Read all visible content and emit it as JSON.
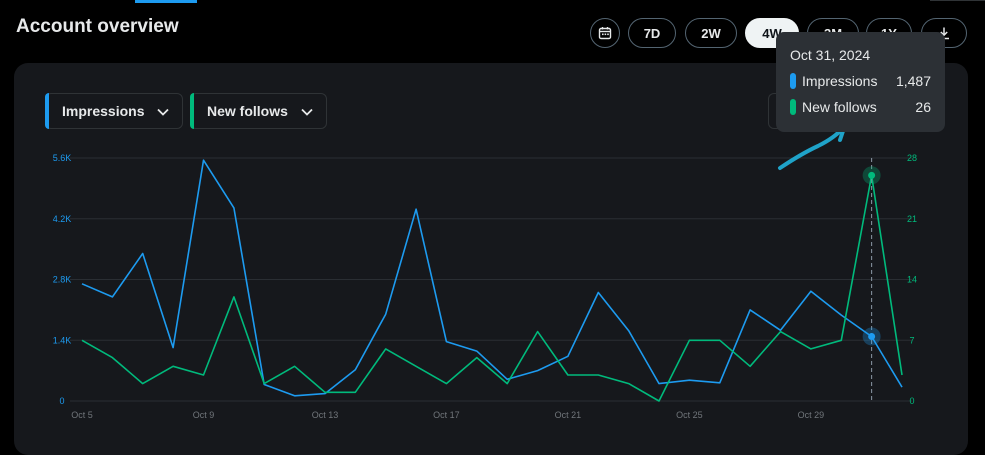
{
  "header": {
    "title": "Account overview",
    "ranges": [
      "7D",
      "2W",
      "4W",
      "3M",
      "1Y"
    ],
    "active_range": "4W"
  },
  "icons": {
    "calendar": "calendar-icon",
    "download": "download-icon",
    "chevron": "chevron-down-icon"
  },
  "selectors": [
    {
      "label": "Impressions",
      "color": "#1d9bf0"
    },
    {
      "label": "New follows",
      "color": "#00ba7c"
    }
  ],
  "tooltip": {
    "date": "Oct 31, 2024",
    "rows": [
      {
        "label": "Impressions",
        "value": "1,487",
        "color": "#1d9bf0"
      },
      {
        "label": "New follows",
        "value": "26",
        "color": "#00ba7c"
      }
    ]
  },
  "chart_data": {
    "type": "line",
    "x": [
      "Oct 5",
      "Oct 6",
      "Oct 7",
      "Oct 8",
      "Oct 9",
      "Oct 10",
      "Oct 11",
      "Oct 12",
      "Oct 13",
      "Oct 14",
      "Oct 15",
      "Oct 16",
      "Oct 17",
      "Oct 18",
      "Oct 19",
      "Oct 20",
      "Oct 21",
      "Oct 22",
      "Oct 23",
      "Oct 24",
      "Oct 25",
      "Oct 26",
      "Oct 27",
      "Oct 28",
      "Oct 29",
      "Oct 30",
      "Oct 31",
      "Nov 1"
    ],
    "x_tick_labels": [
      "Oct 5",
      "Oct 9",
      "Oct 13",
      "Oct 17",
      "Oct 21",
      "Oct 25",
      "Oct 29"
    ],
    "y_left_ticks": [
      "0",
      "1.4K",
      "2.8K",
      "4.2K",
      "5.6K"
    ],
    "y_right_ticks": [
      "0",
      "7",
      "14",
      "21",
      "28"
    ],
    "y_left_lim": [
      0,
      5600
    ],
    "y_right_lim": [
      0,
      28
    ],
    "series": [
      {
        "name": "Impressions",
        "axis": "left",
        "color": "#1d9bf0",
        "values": [
          2700,
          2400,
          3400,
          1230,
          5550,
          4450,
          380,
          120,
          170,
          720,
          2000,
          4420,
          1370,
          1150,
          500,
          700,
          1030,
          2500,
          1620,
          400,
          480,
          420,
          2100,
          1630,
          2530,
          1980,
          1487,
          320
        ]
      },
      {
        "name": "New follows",
        "axis": "right",
        "color": "#00ba7c",
        "values": [
          7,
          5,
          2,
          4,
          3,
          12,
          2,
          4,
          1,
          1,
          6,
          4,
          2,
          5,
          2,
          8,
          3,
          3,
          2,
          0,
          7,
          7,
          4,
          8,
          6,
          7,
          26,
          3
        ]
      }
    ],
    "highlight_index": 26,
    "grid": true
  }
}
